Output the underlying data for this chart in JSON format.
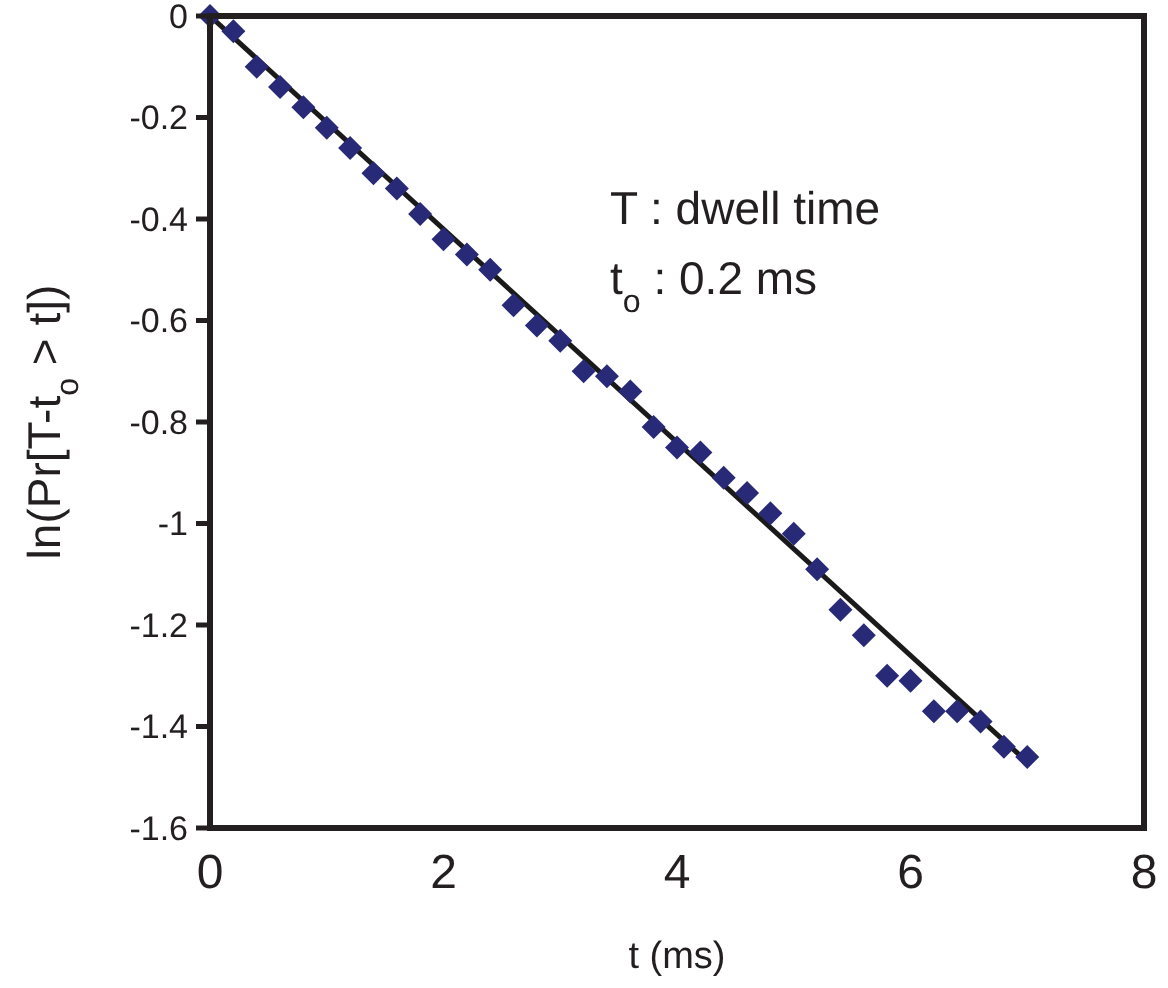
{
  "chart_data": {
    "type": "scatter",
    "xlabel": "t (ms)",
    "ylabel": "ln(Pr[T-t$_{o}$ > t])",
    "xlim": [
      0,
      8
    ],
    "xticks": [
      0,
      2,
      4,
      6,
      8
    ],
    "ylim": [
      -1.6,
      0
    ],
    "yticks": [
      0,
      -0.2,
      -0.4,
      -0.6,
      -0.8,
      -1,
      -1.2,
      -1.4,
      -1.6
    ],
    "grid": false,
    "annotations": [
      "T : dwell time",
      "t$_{o}$ : 0.2 ms"
    ],
    "series": [
      {
        "marker": "diamond",
        "color": "#282a78",
        "x": [
          0,
          0.2,
          0.4,
          0.6,
          0.8,
          1.0,
          1.2,
          1.4,
          1.6,
          1.8,
          2.0,
          2.2,
          2.4,
          2.6,
          2.8,
          3.0,
          3.2,
          3.4,
          3.6,
          3.8,
          4.0,
          4.2,
          4.4,
          4.6,
          4.8,
          5.0,
          5.2,
          5.4,
          5.6,
          5.8,
          6.0,
          6.2,
          6.4,
          6.6,
          6.8,
          7.0
        ],
        "values": [
          0,
          -0.03,
          -0.1,
          -0.14,
          -0.18,
          -0.22,
          -0.26,
          -0.31,
          -0.34,
          -0.39,
          -0.44,
          -0.47,
          -0.5,
          -0.57,
          -0.61,
          -0.64,
          -0.7,
          -0.71,
          -0.74,
          -0.81,
          -0.85,
          -0.86,
          -0.91,
          -0.94,
          -0.98,
          -1.02,
          -1.09,
          -1.17,
          -1.22,
          -1.3,
          -1.31,
          -1.37,
          -1.37,
          -1.39,
          -1.44,
          -1.46
        ]
      },
      {
        "type": "line",
        "color": "#1a1a1a",
        "line_style": "solid",
        "x": [
          0,
          7
        ],
        "values": [
          0,
          -1.47
        ]
      }
    ]
  }
}
